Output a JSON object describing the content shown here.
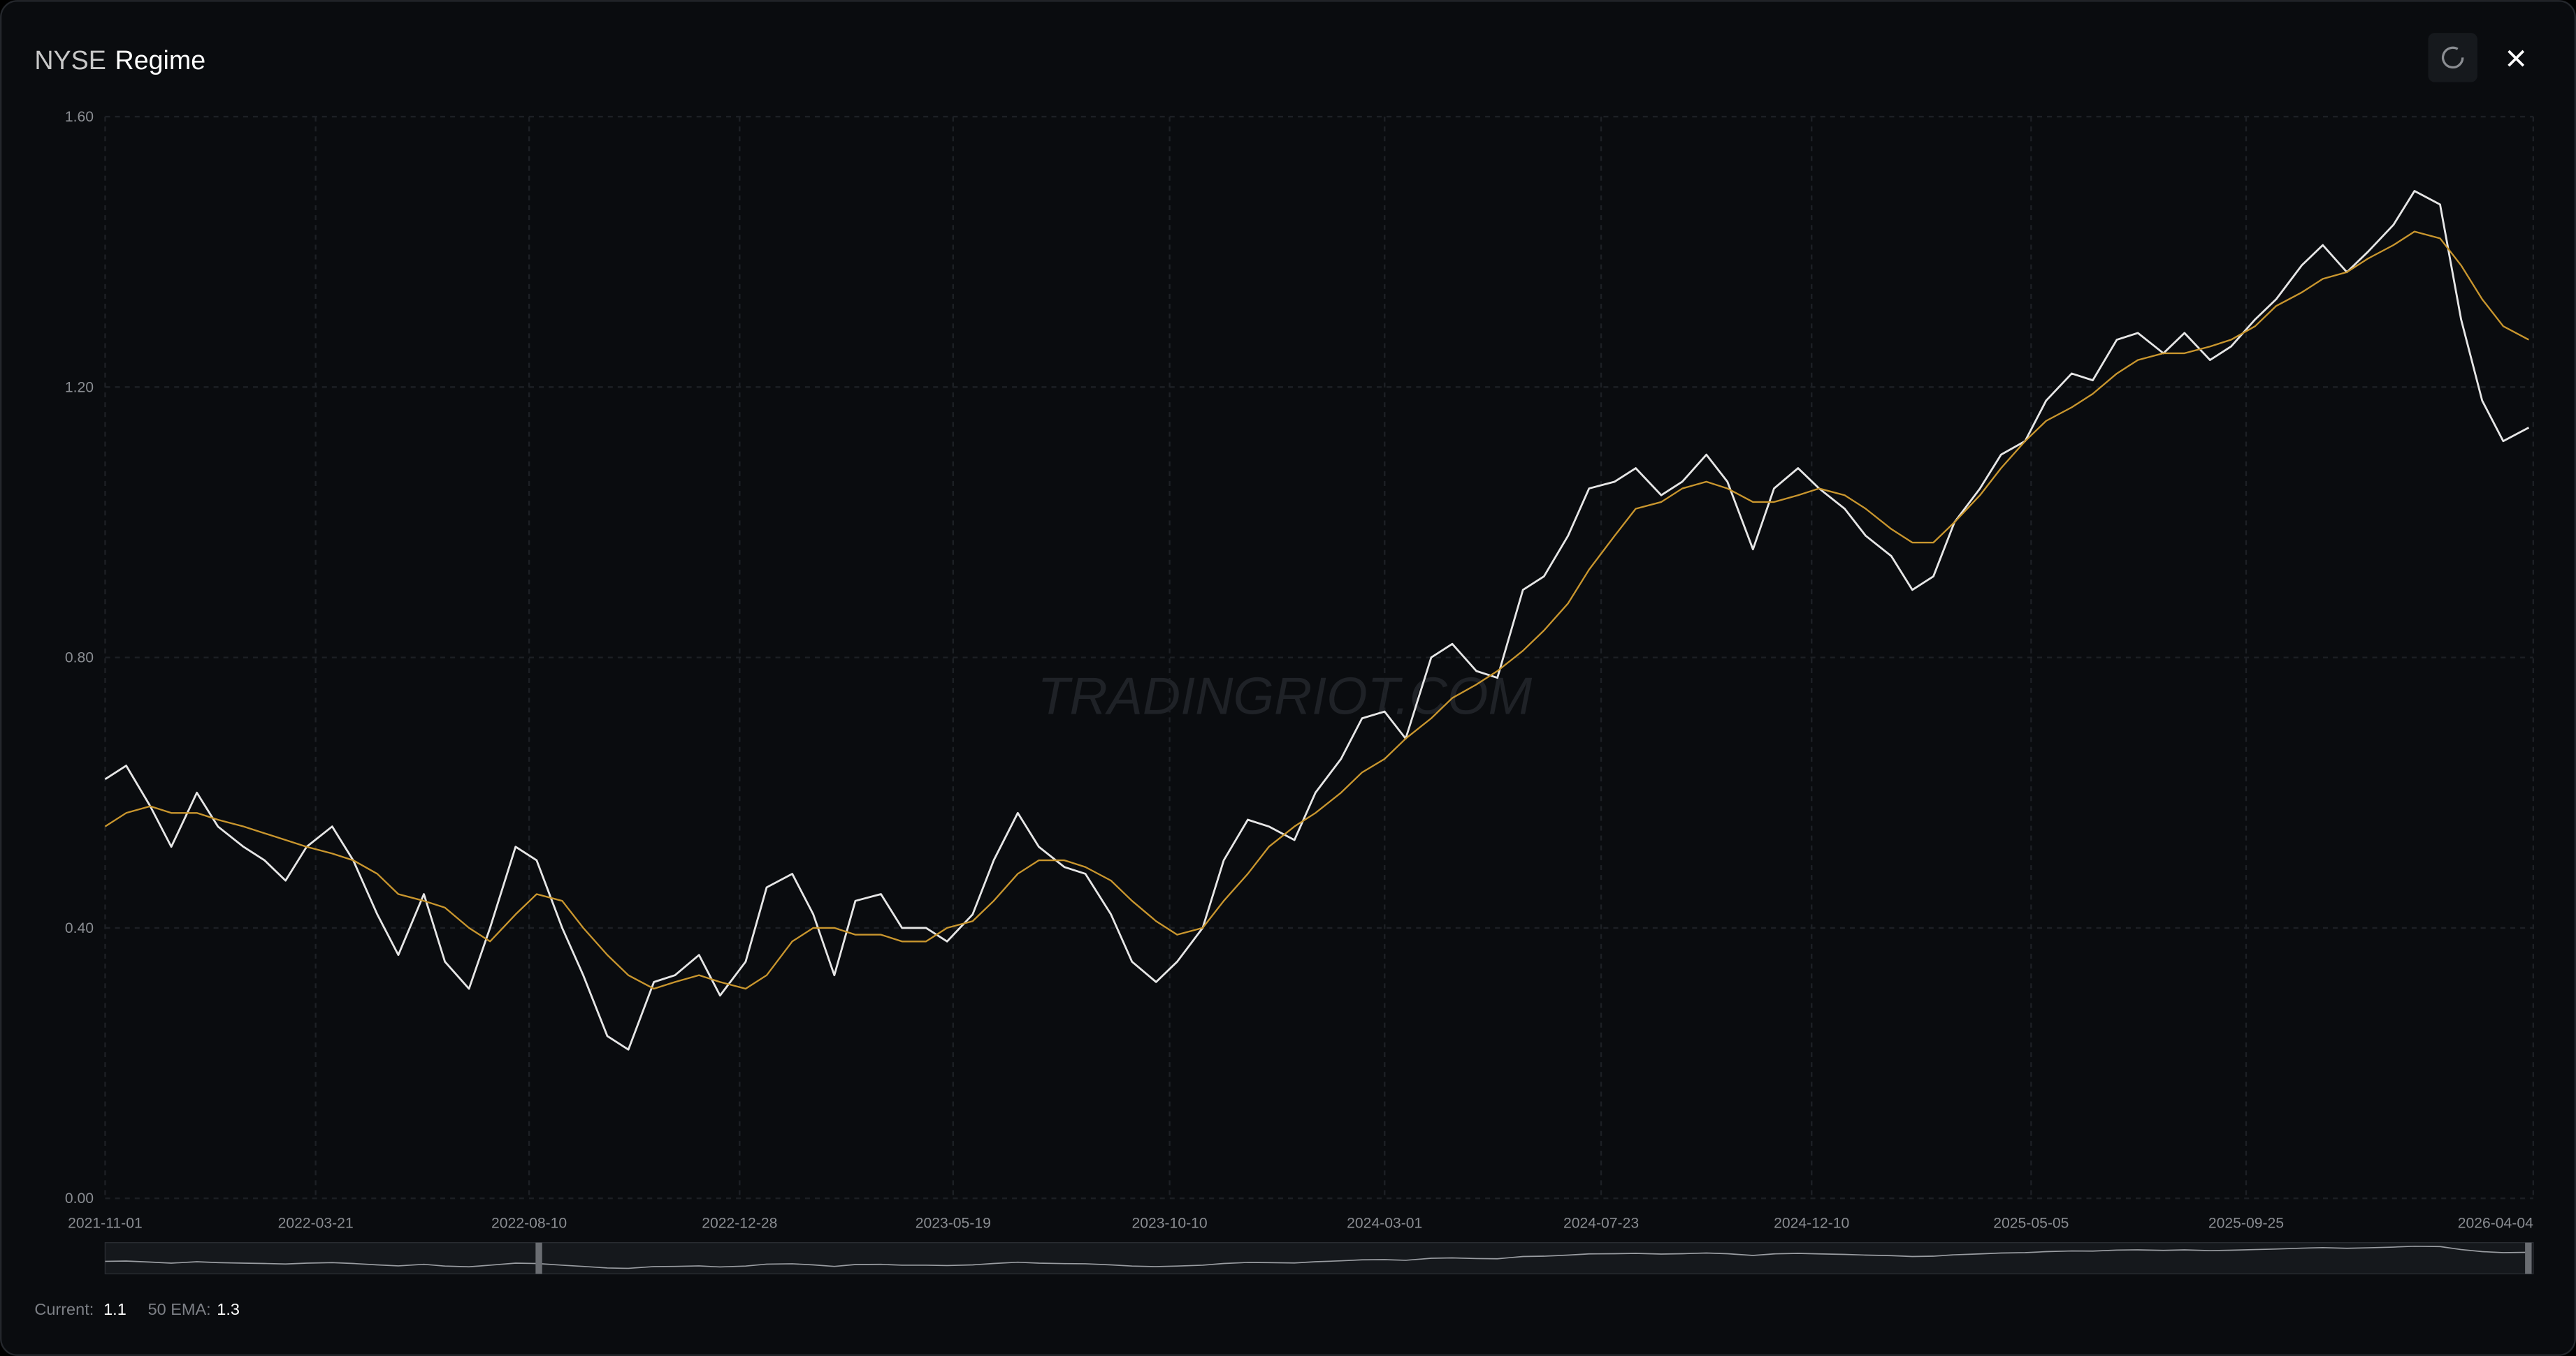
{
  "header": {
    "exchange": "NYSE",
    "title": "Regime"
  },
  "watermark": "TRADINGRIOT.COM",
  "footer": {
    "current_label": "Current:",
    "current": 1.1,
    "ema_label": "50 EMA:",
    "ema": 1.3
  },
  "chart_data": {
    "type": "line",
    "x": [
      "2021-11-01",
      "2021-11-15",
      "2021-12-01",
      "2021-12-15",
      "2022-01-01",
      "2022-01-15",
      "2022-02-01",
      "2022-02-15",
      "2022-03-01",
      "2022-03-15",
      "2022-04-01",
      "2022-04-15",
      "2022-05-01",
      "2022-05-15",
      "2022-06-01",
      "2022-06-15",
      "2022-07-01",
      "2022-07-15",
      "2022-08-01",
      "2022-08-15",
      "2022-09-01",
      "2022-09-15",
      "2022-10-01",
      "2022-10-15",
      "2022-11-01",
      "2022-11-15",
      "2022-12-01",
      "2022-12-15",
      "2023-01-01",
      "2023-01-15",
      "2023-02-01",
      "2023-02-15",
      "2023-03-01",
      "2023-03-15",
      "2023-04-01",
      "2023-04-15",
      "2023-05-01",
      "2023-05-15",
      "2023-06-01",
      "2023-06-15",
      "2023-07-01",
      "2023-07-15",
      "2023-08-01",
      "2023-08-15",
      "2023-09-01",
      "2023-09-15",
      "2023-10-01",
      "2023-10-15",
      "2023-11-01",
      "2023-11-15",
      "2023-12-01",
      "2023-12-15",
      "2024-01-01",
      "2024-01-15",
      "2024-02-01",
      "2024-02-15",
      "2024-03-01",
      "2024-03-15",
      "2024-04-01",
      "2024-04-15",
      "2024-05-01",
      "2024-05-15",
      "2024-06-01",
      "2024-06-15",
      "2024-07-01",
      "2024-07-15",
      "2024-08-01",
      "2024-08-15",
      "2024-09-01",
      "2024-09-15",
      "2024-10-01",
      "2024-10-15",
      "2024-11-01",
      "2024-11-15",
      "2024-12-01",
      "2024-12-15",
      "2025-01-01",
      "2025-01-15",
      "2025-02-01",
      "2025-02-15",
      "2025-03-01",
      "2025-03-15",
      "2025-04-01",
      "2025-04-15",
      "2025-05-01",
      "2025-05-15",
      "2025-06-01",
      "2025-06-15",
      "2025-07-01",
      "2025-07-15",
      "2025-08-01",
      "2025-08-15",
      "2025-09-01",
      "2025-09-15",
      "2025-10-01",
      "2025-10-15",
      "2025-11-01",
      "2025-11-15",
      "2025-12-01",
      "2025-12-15",
      "2026-01-01",
      "2026-01-15",
      "2026-02-01",
      "2026-02-15",
      "2026-03-01",
      "2026-03-15",
      "2026-04-01"
    ],
    "series": [
      {
        "color": "#e6e6e6",
        "values": [
          0.62,
          0.64,
          0.58,
          0.52,
          0.6,
          0.55,
          0.52,
          0.5,
          0.47,
          0.52,
          0.55,
          0.5,
          0.42,
          0.36,
          0.45,
          0.35,
          0.31,
          0.4,
          0.52,
          0.5,
          0.4,
          0.33,
          0.24,
          0.22,
          0.32,
          0.33,
          0.36,
          0.3,
          0.35,
          0.46,
          0.48,
          0.42,
          0.33,
          0.44,
          0.45,
          0.4,
          0.4,
          0.38,
          0.42,
          0.5,
          0.57,
          0.52,
          0.49,
          0.48,
          0.42,
          0.35,
          0.32,
          0.35,
          0.4,
          0.5,
          0.56,
          0.55,
          0.53,
          0.6,
          0.65,
          0.71,
          0.72,
          0.68,
          0.8,
          0.82,
          0.78,
          0.77,
          0.9,
          0.92,
          0.98,
          1.05,
          1.06,
          1.08,
          1.04,
          1.06,
          1.1,
          1.06,
          0.96,
          1.05,
          1.08,
          1.05,
          1.02,
          0.98,
          0.95,
          0.9,
          0.92,
          1.0,
          1.05,
          1.1,
          1.12,
          1.18,
          1.22,
          1.21,
          1.27,
          1.28,
          1.25,
          1.28,
          1.24,
          1.26,
          1.3,
          1.33,
          1.38,
          1.41,
          1.37,
          1.4,
          1.44,
          1.49,
          1.47,
          1.3,
          1.18,
          1.12,
          1.14
        ]
      },
      {
        "color": "#c9962e",
        "values": [
          0.55,
          0.57,
          0.58,
          0.57,
          0.57,
          0.56,
          0.55,
          0.54,
          0.53,
          0.52,
          0.51,
          0.5,
          0.48,
          0.45,
          0.44,
          0.43,
          0.4,
          0.38,
          0.42,
          0.45,
          0.44,
          0.4,
          0.36,
          0.33,
          0.31,
          0.32,
          0.33,
          0.32,
          0.31,
          0.33,
          0.38,
          0.4,
          0.4,
          0.39,
          0.39,
          0.38,
          0.38,
          0.4,
          0.41,
          0.44,
          0.48,
          0.5,
          0.5,
          0.49,
          0.47,
          0.44,
          0.41,
          0.39,
          0.4,
          0.44,
          0.48,
          0.52,
          0.55,
          0.57,
          0.6,
          0.63,
          0.65,
          0.68,
          0.71,
          0.74,
          0.76,
          0.78,
          0.81,
          0.84,
          0.88,
          0.93,
          0.98,
          1.02,
          1.03,
          1.05,
          1.06,
          1.05,
          1.03,
          1.03,
          1.04,
          1.05,
          1.04,
          1.02,
          0.99,
          0.97,
          0.97,
          1.0,
          1.04,
          1.08,
          1.12,
          1.15,
          1.17,
          1.19,
          1.22,
          1.24,
          1.25,
          1.25,
          1.26,
          1.27,
          1.29,
          1.32,
          1.34,
          1.36,
          1.37,
          1.39,
          1.41,
          1.43,
          1.42,
          1.38,
          1.33,
          1.29,
          1.27
        ]
      }
    ],
    "xlim": [
      "2021-11-01",
      "2026-04-04"
    ],
    "xticks": [
      "2021-11-01",
      "2022-03-21",
      "2022-08-10",
      "2022-12-28",
      "2023-05-19",
      "2023-10-10",
      "2024-03-01",
      "2024-07-23",
      "2024-12-10",
      "2025-05-05",
      "2025-09-25",
      "2026-04-04"
    ],
    "ylim": [
      0,
      1.6
    ],
    "yticks": [
      {
        "value": 0,
        "label": "0.00"
      },
      {
        "value": 0.4,
        "label": "0.40"
      },
      {
        "value": 0.8,
        "label": "0.80"
      },
      {
        "value": 1.2,
        "label": "1.20"
      },
      {
        "value": 1.6,
        "label": "1.60"
      }
    ],
    "grid": true
  }
}
